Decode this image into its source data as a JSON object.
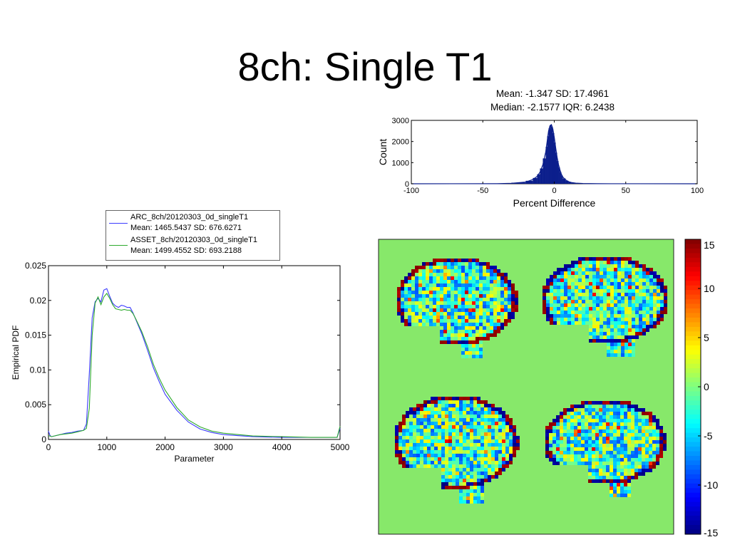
{
  "slide": {
    "title": "8ch: Single T1"
  },
  "colors": {
    "arc": "#3b3bff",
    "asset": "#2eaa2e",
    "hist": "#0b1e8c",
    "map_bg": "#87e86a"
  },
  "chart_data": [
    {
      "type": "bar",
      "id": "percent-difference-histogram",
      "title_lines": [
        "Mean: -1.347 SD: 17.4961",
        "Median: -2.1577 IQR: 6.2438"
      ],
      "xlabel": "Percent Difference",
      "ylabel": "Count",
      "xlim": [
        -100,
        100
      ],
      "ylim": [
        0,
        3000
      ],
      "xticks": [
        "-100",
        "-50",
        "0",
        "50",
        "100"
      ],
      "yticks": [
        "0",
        "1000",
        "2000",
        "3000"
      ],
      "x": [
        -100,
        -40,
        -30,
        -20,
        -15,
        -12,
        -10,
        -8,
        -6,
        -5,
        -4,
        -3,
        -2,
        -1,
        0,
        1,
        2,
        3,
        4,
        5,
        6,
        8,
        10,
        12,
        15,
        20,
        30,
        40,
        100
      ],
      "y": [
        0,
        5,
        20,
        80,
        200,
        350,
        550,
        900,
        1500,
        2000,
        2500,
        2750,
        2800,
        2600,
        2200,
        1700,
        1250,
        900,
        650,
        450,
        320,
        180,
        100,
        60,
        30,
        12,
        4,
        2,
        0
      ]
    },
    {
      "type": "line",
      "id": "empirical-pdf",
      "xlabel": "Parameter",
      "ylabel": "Empirical PDF",
      "xlim": [
        0,
        5000
      ],
      "ylim": [
        0,
        0.025
      ],
      "xticks": [
        "0",
        "1000",
        "2000",
        "3000",
        "4000",
        "5000"
      ],
      "yticks": [
        "0",
        "0.005",
        "0.01",
        "0.015",
        "0.02",
        "0.025"
      ],
      "legend": [
        {
          "line1": "ARC_8ch/20120303_0d_singleT1",
          "line2": "Mean: 1465.5437 SD: 676.6271"
        },
        {
          "line1": "ASSET_8ch/20120303_0d_singleT1",
          "line2": "Mean: 1499.4552 SD: 693.2188"
        }
      ],
      "legend_position": "above",
      "series": [
        {
          "x": [
            0,
            25,
            50,
            100,
            200,
            300,
            400,
            500,
            600,
            650,
            700,
            750,
            800,
            850,
            900,
            950,
            1000,
            1050,
            1100,
            1150,
            1200,
            1250,
            1300,
            1350,
            1400,
            1450,
            1500,
            1600,
            1700,
            1800,
            1900,
            2000,
            2200,
            2400,
            2600,
            2800,
            3000,
            3500,
            4000,
            4500,
            4950,
            5000
          ],
          "y": [
            0.0012,
            0.0006,
            0.0004,
            0.0005,
            0.0007,
            0.0009,
            0.001,
            0.0012,
            0.0013,
            0.0022,
            0.0095,
            0.0175,
            0.0198,
            0.0203,
            0.0198,
            0.0215,
            0.0217,
            0.0206,
            0.0196,
            0.0192,
            0.019,
            0.0193,
            0.0192,
            0.019,
            0.019,
            0.0182,
            0.0172,
            0.0152,
            0.0128,
            0.0103,
            0.0083,
            0.0065,
            0.0042,
            0.0025,
            0.0015,
            0.001,
            0.0007,
            0.0004,
            0.0003,
            0.0003,
            0.0003,
            0.0016
          ]
        },
        {
          "x": [
            0,
            25,
            50,
            100,
            200,
            300,
            400,
            500,
            600,
            650,
            700,
            750,
            800,
            850,
            900,
            950,
            1000,
            1050,
            1100,
            1150,
            1200,
            1250,
            1300,
            1350,
            1400,
            1450,
            1500,
            1600,
            1700,
            1800,
            1900,
            2000,
            2200,
            2400,
            2600,
            2800,
            3000,
            3500,
            4000,
            4500,
            4950,
            5000
          ],
          "y": [
            0.0005,
            0.0005,
            0.0004,
            0.0005,
            0.0007,
            0.0008,
            0.0009,
            0.0011,
            0.0013,
            0.0016,
            0.0045,
            0.015,
            0.0196,
            0.0205,
            0.0194,
            0.0205,
            0.021,
            0.0203,
            0.0194,
            0.0188,
            0.0187,
            0.0186,
            0.0187,
            0.0186,
            0.0186,
            0.0181,
            0.0173,
            0.0155,
            0.0133,
            0.0108,
            0.0088,
            0.0071,
            0.0046,
            0.0028,
            0.0018,
            0.0012,
            0.0009,
            0.0005,
            0.0004,
            0.0003,
            0.0003,
            0.0019
          ]
        }
      ]
    },
    {
      "type": "heatmap",
      "id": "brain-difference-map",
      "description_panels": 4,
      "colorbar_ticks": [
        "15",
        "10",
        "5",
        "0",
        "-5",
        "-10",
        "-15"
      ],
      "clim": [
        -15,
        15
      ],
      "colormap": "jet"
    }
  ]
}
